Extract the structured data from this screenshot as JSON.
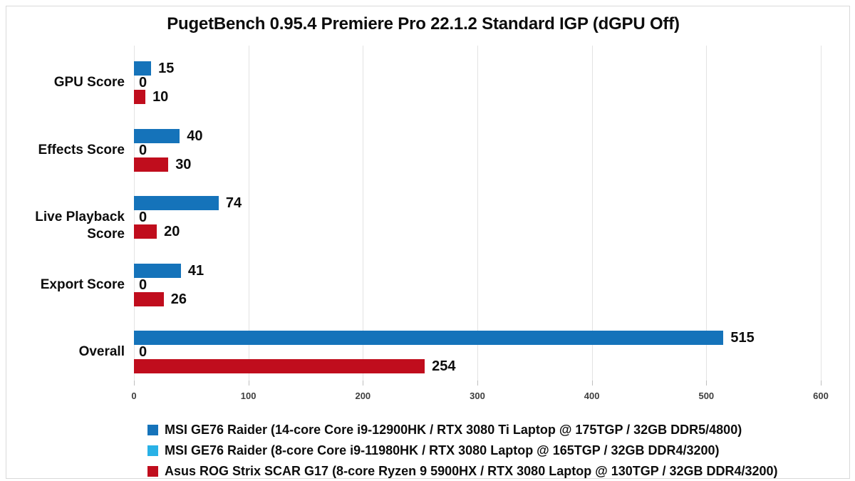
{
  "chart_data": {
    "type": "bar",
    "orientation": "horizontal",
    "title": "PugetBench 0.95.4 Premiere Pro 22.1.2 Standard IGP (dGPU Off)",
    "categories": [
      "GPU Score",
      "Effects Score",
      "Live Playback Score",
      "Export Score",
      "Overall"
    ],
    "series": [
      {
        "name": "MSI GE76 Raider (14-core Core i9-12900HK / RTX 3080 Ti Laptop @ 175TGP / 32GB DDR5/4800)",
        "color": "#1573ba",
        "values": [
          15,
          40,
          74,
          41,
          515
        ]
      },
      {
        "name": "MSI GE76 Raider (8-core Core i9-11980HK / RTX 3080 Laptop @ 165TGP / 32GB DDR4/3200)",
        "color": "#29b1e6",
        "values": [
          0,
          0,
          0,
          0,
          0
        ]
      },
      {
        "name": "Asus ROG Strix SCAR G17 (8-core Ryzen 9 5900HX / RTX 3080 Laptop @ 130TGP / 32GB DDR4/3200)",
        "color": "#c00d1d",
        "values": [
          10,
          30,
          20,
          26,
          254
        ]
      }
    ],
    "x_ticks": [
      0,
      100,
      200,
      300,
      400,
      500,
      600
    ],
    "xlim": [
      0,
      600
    ],
    "grid": "vertical",
    "gridline_color": "#e3e3e3",
    "legend_position": "bottom",
    "data_labels": true
  }
}
